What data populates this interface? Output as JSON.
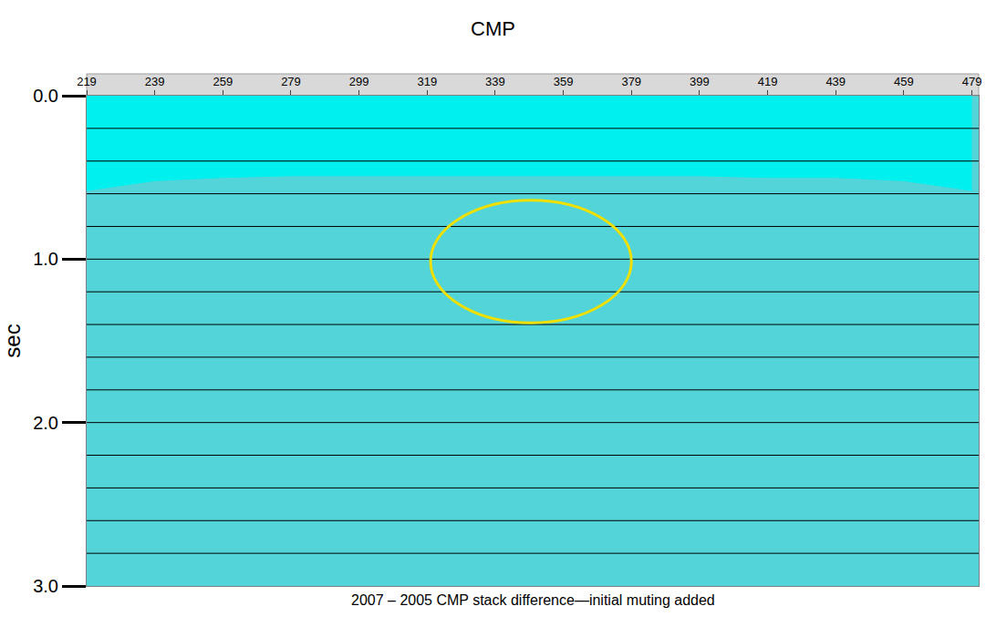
{
  "chart_data": {
    "type": "area",
    "title": "CMP",
    "y_label": "sec",
    "caption": "2007 – 2005 CMP stack difference—initial muting added",
    "series": [
      {
        "name": "initial muting",
        "color": "#00f0f0",
        "x": [
          219,
          239,
          259,
          279,
          299,
          319,
          339,
          359,
          379,
          399,
          419,
          439,
          459,
          479
        ],
        "values": [
          0.58,
          0.52,
          0.5,
          0.49,
          0.49,
          0.49,
          0.49,
          0.49,
          0.49,
          0.49,
          0.5,
          0.5,
          0.52,
          0.58
        ]
      }
    ],
    "xlim": [
      219,
      481
    ],
    "xticks": [
      219,
      239,
      259,
      279,
      299,
      319,
      339,
      359,
      379,
      399,
      419,
      439,
      459,
      479
    ],
    "ylim": [
      0,
      3
    ],
    "yticks": [
      {
        "value": 0,
        "label": "0.0"
      },
      {
        "value": 1,
        "label": "1.0"
      },
      {
        "value": 2,
        "label": "2.0"
      },
      {
        "value": 3,
        "label": "3.0"
      }
    ],
    "timing_lines": [
      0.2,
      0.4,
      0.6,
      0.8,
      1.0,
      1.2,
      1.4,
      1.6,
      1.8,
      2.0,
      2.2,
      2.4,
      2.6,
      2.8
    ],
    "ellipse": {
      "x": [
        320,
        379
      ],
      "y": [
        0.64,
        1.39
      ],
      "color": "#f0e000"
    },
    "grid": false
  }
}
